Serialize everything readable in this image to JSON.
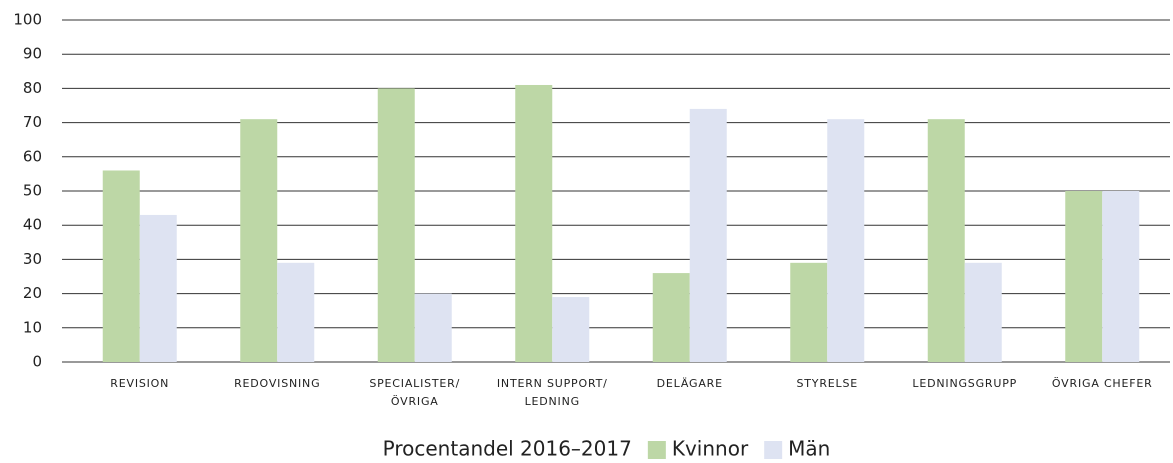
{
  "chart_data": {
    "type": "bar",
    "categories": [
      "REVISION",
      "REDOVISNING",
      "SPECIALISTER/\nÖVRIGA",
      "INTERN SUPPORT/\nLEDNING",
      "DELÄGARE",
      "STYRELSE",
      "LEDNINGSGRUPP",
      "ÖVRIGA CHEFER"
    ],
    "series": [
      {
        "name": "Kvinnor",
        "color": "#bdd7a6",
        "values": [
          56,
          71,
          80,
          81,
          26,
          29,
          71,
          50
        ]
      },
      {
        "name": "Män",
        "color": "#dee3f2",
        "values": [
          43,
          29,
          20,
          19,
          74,
          71,
          29,
          50
        ]
      }
    ],
    "legend_title": "Procentandel 2016–2017",
    "ylim": [
      0,
      100
    ],
    "yticks": [
      0,
      10,
      20,
      30,
      40,
      50,
      60,
      70,
      80,
      90,
      100
    ],
    "grid": true,
    "legend": "bottom"
  }
}
